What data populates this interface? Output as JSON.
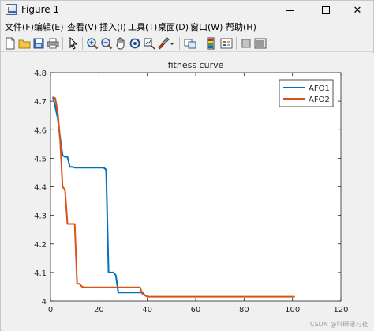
{
  "window": {
    "title": "Figure 1",
    "minimize_glyph": "",
    "maximize_glyph": "",
    "close_glyph": "✕"
  },
  "menu": [
    "文件(F)",
    "编辑(E)",
    "查看(V)",
    "插入(I)",
    "工具(T)",
    "桌面(D)",
    "窗口(W)",
    "帮助(H)"
  ],
  "toolbar_icons": [
    "new-figure-icon",
    "open-file-icon",
    "save-icon",
    "print-icon",
    "select-pointer-icon",
    "zoom-in-icon",
    "zoom-out-icon",
    "pan-hand-icon",
    "rotate-3d-icon",
    "data-cursor-icon",
    "brush-icon",
    "brush-dropdown-icon",
    "link-plot-icon",
    "colorbar-icon",
    "legend-icon",
    "hide-plot-tools-icon",
    "show-plot-tools-icon"
  ],
  "colors": {
    "series_1": "#0072bd",
    "series_2": "#d95319",
    "axes_bg": "#ffffff",
    "figure_bg": "#f0f0f0",
    "axis_line": "#262626"
  },
  "watermark": "CSDN @科研研习社",
  "chart_data": {
    "type": "line",
    "title": "fitness curve",
    "xlabel": "",
    "ylabel": "",
    "xlim": [
      0,
      120
    ],
    "ylim": [
      4,
      4.8
    ],
    "xticks": [
      "0",
      "20",
      "40",
      "60",
      "80",
      "100",
      "120"
    ],
    "yticks": [
      "4",
      "4.1",
      "4.2",
      "4.3",
      "4.4",
      "4.5",
      "4.6",
      "4.7",
      "4.8"
    ],
    "grid": false,
    "legend_position": "top-right",
    "series": [
      {
        "name": "AFO1",
        "x": [
          1,
          2,
          3,
          4,
          5,
          6,
          7,
          8,
          9,
          10,
          15,
          20,
          22,
          23,
          24,
          25,
          26,
          27,
          28,
          35,
          38,
          39,
          40
        ],
        "y": [
          4.715,
          4.68,
          4.64,
          4.57,
          4.51,
          4.505,
          4.505,
          4.47,
          4.47,
          4.467,
          4.467,
          4.467,
          4.467,
          4.46,
          4.1,
          4.1,
          4.1,
          4.09,
          4.03,
          4.03,
          4.03,
          4.02,
          4.015
        ]
      },
      {
        "name": "AFO2",
        "x": [
          1,
          2,
          3,
          4,
          5,
          6,
          7,
          8,
          9,
          10,
          11,
          12,
          13,
          14,
          20,
          30,
          37,
          38,
          39,
          40,
          60,
          80,
          100,
          101
        ],
        "y": [
          4.715,
          4.71,
          4.66,
          4.56,
          4.4,
          4.39,
          4.27,
          4.27,
          4.27,
          4.27,
          4.06,
          4.06,
          4.05,
          4.048,
          4.048,
          4.048,
          4.048,
          4.025,
          4.02,
          4.015,
          4.015,
          4.015,
          4.015,
          4.015
        ]
      }
    ]
  }
}
